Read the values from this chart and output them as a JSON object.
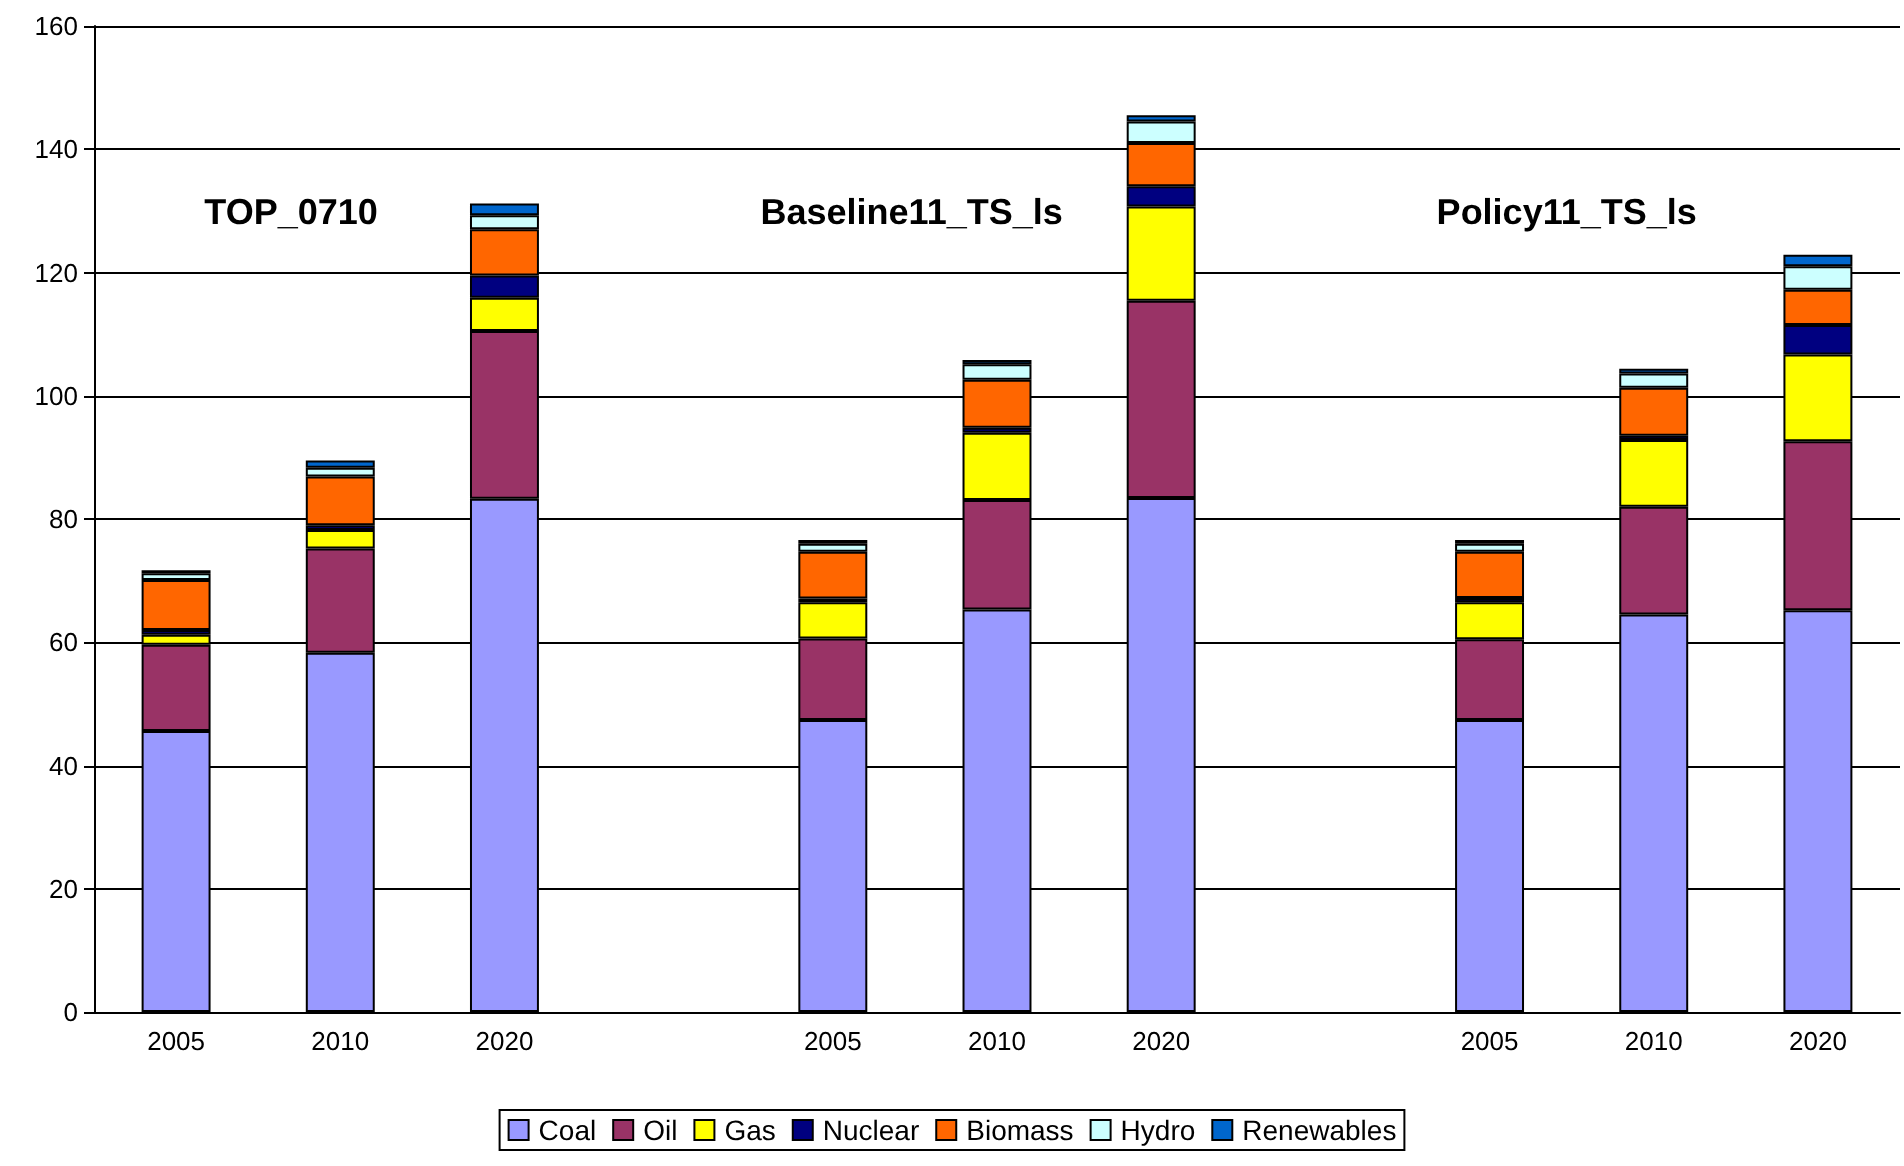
{
  "chart_data": {
    "type": "bar",
    "stacked": true,
    "categories": [
      "2005",
      "2010",
      "2020",
      null,
      "2005",
      "2010",
      "2020",
      null,
      "2005",
      "2010",
      "2020"
    ],
    "series": [
      {
        "name": "Coal",
        "color": "#9999ff",
        "values": [
          45.6,
          58.3,
          83.3,
          null,
          47.4,
          65.3,
          83.4,
          null,
          47.4,
          64.5,
          65.2
        ]
      },
      {
        "name": "Oil",
        "color": "#993366",
        "values": [
          14.0,
          16.9,
          27.2,
          null,
          13.2,
          17.8,
          32.0,
          null,
          13.1,
          17.5,
          27.4
        ]
      },
      {
        "name": "Gas",
        "color": "#ffff00",
        "values": [
          1.6,
          3.0,
          5.4,
          null,
          5.9,
          10.9,
          15.3,
          null,
          6.0,
          10.8,
          14.1
        ]
      },
      {
        "name": "Nuclear",
        "color": "#000080",
        "values": [
          0.8,
          0.8,
          3.6,
          null,
          0.6,
          0.8,
          3.3,
          null,
          0.7,
          0.7,
          4.8
        ]
      },
      {
        "name": "Biomass",
        "color": "#ff6600",
        "values": [
          8.1,
          7.9,
          7.5,
          null,
          7.6,
          7.8,
          7.0,
          null,
          7.5,
          7.8,
          5.7
        ]
      },
      {
        "name": "Hydro",
        "color": "#ccffff",
        "values": [
          1.1,
          1.4,
          2.3,
          null,
          1.3,
          2.5,
          3.5,
          null,
          1.3,
          2.3,
          3.8
        ]
      },
      {
        "name": "Renewables",
        "color": "#0066cc",
        "values": [
          0.5,
          1.2,
          1.9,
          null,
          0.6,
          0.7,
          1.0,
          null,
          0.6,
          0.8,
          1.9
        ]
      }
    ],
    "ylim": [
      0,
      160
    ],
    "yticks": [
      0,
      20,
      40,
      60,
      80,
      100,
      120,
      140,
      160
    ],
    "grid": "y",
    "legend": "bottom",
    "annotations": [
      "TOP_0710",
      "Baseline11_TS_ls",
      "Policy11_TS_ls"
    ]
  }
}
